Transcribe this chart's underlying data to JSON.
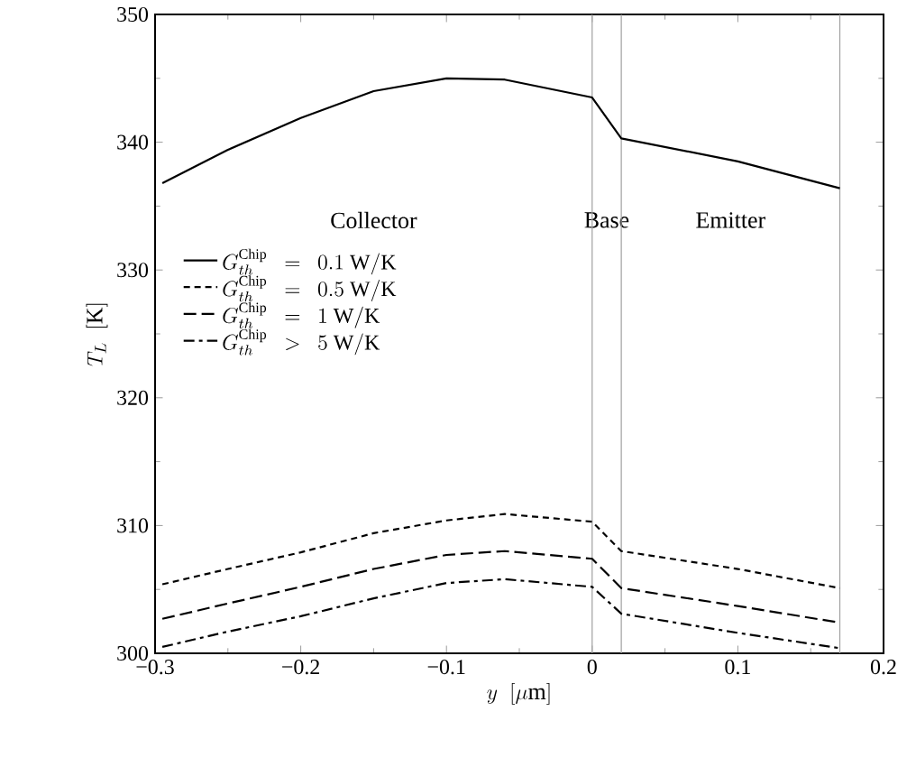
{
  "chart_data": {
    "type": "line",
    "xlabel": "y\\ \\ [\\mu\\mathrm{m}]",
    "ylabel": "T_L\\ \\ [\\mathrm{K}]",
    "xlim": [
      -0.3,
      0.2
    ],
    "ylim": [
      300,
      350
    ],
    "xticks": [
      {
        "value": -0.3,
        "label": "−0.3"
      },
      {
        "value": -0.2,
        "label": "−0.2"
      },
      {
        "value": -0.1,
        "label": "−0.1"
      },
      0,
      0.1,
      0.2
    ],
    "yticks": [
      300,
      310,
      320,
      330,
      340,
      350
    ],
    "legend": "left",
    "marker": "none",
    "x": [
      -0.295,
      -0.25,
      -0.2,
      -0.15,
      -0.1,
      -0.06,
      0,
      0.02,
      0.1,
      0.17
    ],
    "series": [
      {
        "name": "G_{th}^{\\mathrm{Chip}}\\ \\ =\\ \\ 0.1\\ \\mathrm{W/K}",
        "color": "#000000",
        "line_style": "solid",
        "values": [
          336.8,
          339.4,
          341.9,
          344.0,
          345.0,
          344.9,
          343.5,
          340.3,
          338.5,
          336.4
        ]
      },
      {
        "name": "G_{th}^{\\mathrm{Chip}}\\ \\ =\\ \\ 0.5\\ \\mathrm{W/K}",
        "color": "#000000",
        "line_style": "dashed",
        "values": [
          305.4,
          306.6,
          307.9,
          309.4,
          310.4,
          310.9,
          310.3,
          308.0,
          306.6,
          305.1
        ]
      },
      {
        "name": "G_{th}^{\\mathrm{Chip}}\\ \\ =\\ \\ 1\\ \\mathrm{W/K}",
        "color": "#000000",
        "line_style": "long dashed",
        "values": [
          302.7,
          303.9,
          305.2,
          306.6,
          307.7,
          308.0,
          307.4,
          305.1,
          303.7,
          302.4
        ]
      },
      {
        "name": "G_{th}^{\\mathrm{Chip}}\\ \\ >\\ \\ 5\\ \\mathrm{W/K}",
        "color": "#000000",
        "line_style": "dash dot",
        "values": [
          300.5,
          301.7,
          302.9,
          304.3,
          305.5,
          305.8,
          305.2,
          303.1,
          301.6,
          300.4
        ]
      }
    ],
    "ref_lines": [
      {
        "axis": "x",
        "value": 0,
        "color": "#a0a0a0"
      },
      {
        "axis": "x",
        "value": 0.02,
        "color": "#a0a0a0"
      },
      {
        "axis": "x",
        "value": 0.17,
        "color": "#a0a0a0"
      }
    ],
    "annotations": [
      "Collector",
      "Base",
      "Emitter"
    ]
  }
}
